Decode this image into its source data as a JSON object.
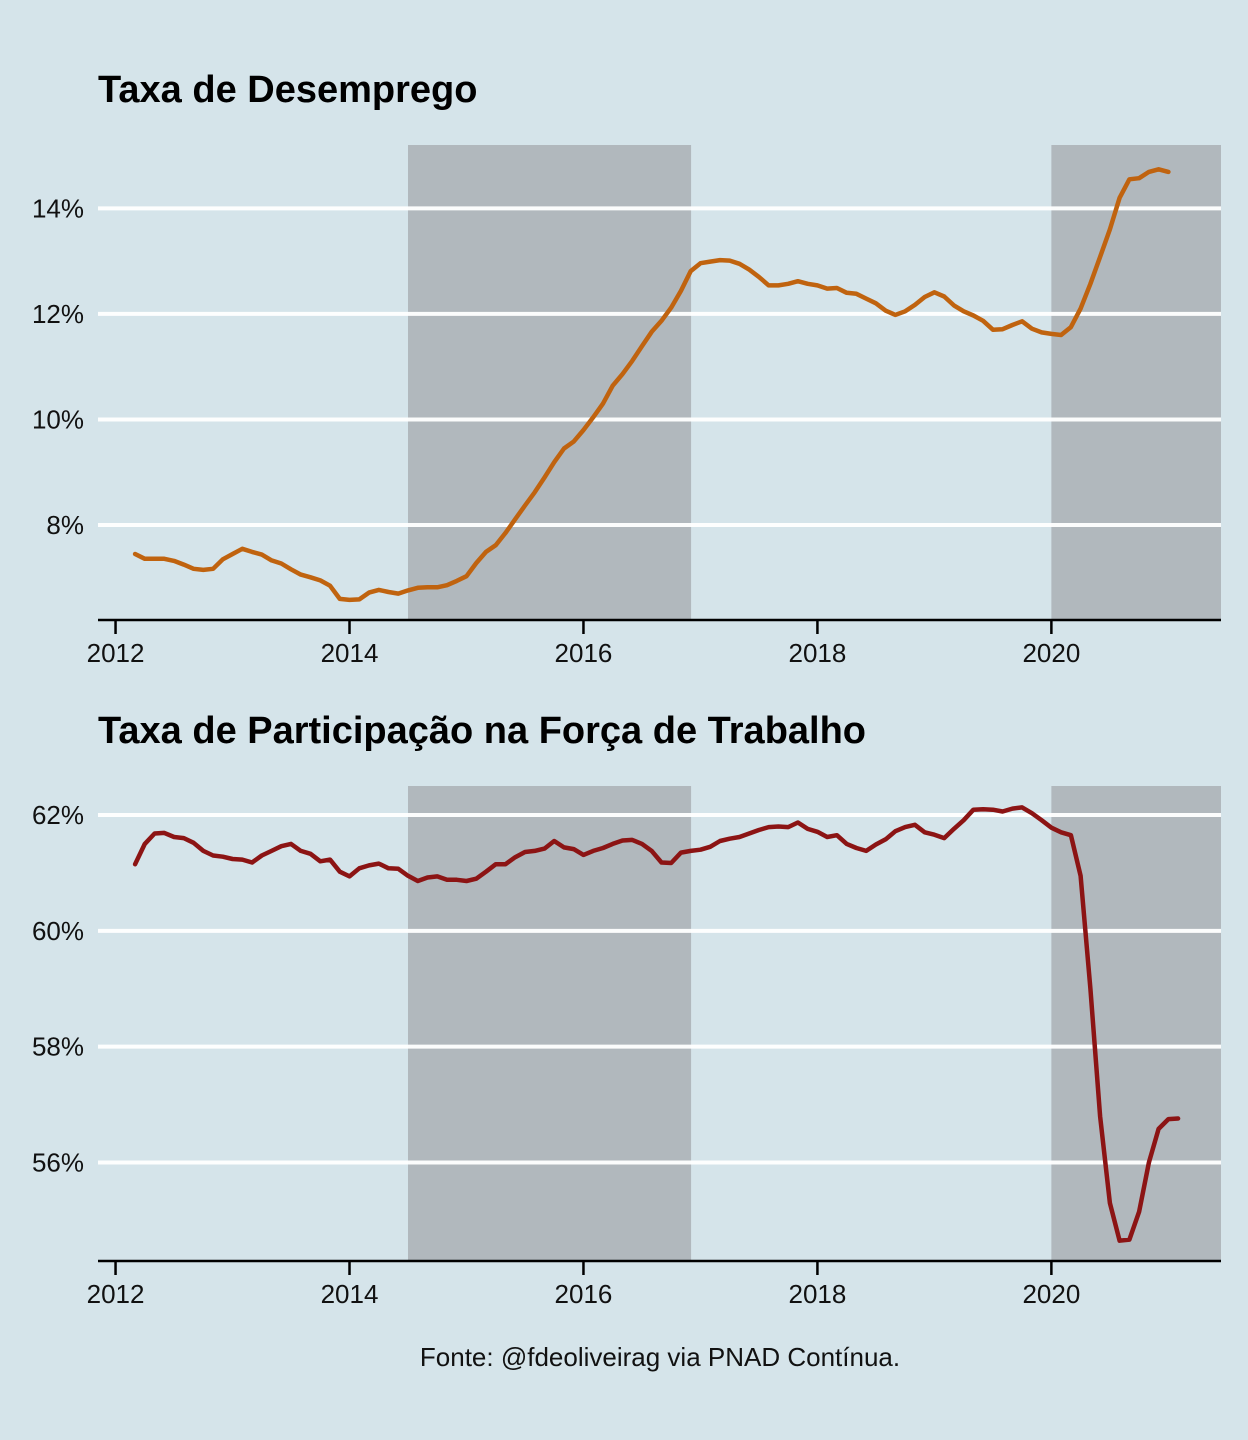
{
  "source_note": "Fonte: @fdeoliveirag via PNAD Contínua.",
  "colors": {
    "background": "#d5e4ea",
    "shade": "#b1b8bd",
    "grid": "#ffffff",
    "unemployment": "#c0630f",
    "participation": "#8c1414"
  },
  "chart_data": [
    {
      "type": "line",
      "title": "Taxa de Desemprego",
      "xlabel": "",
      "ylabel": "",
      "xlim": [
        2011.85,
        2021.45
      ],
      "ylim": [
        6.2,
        15.2
      ],
      "x_ticks": [
        2012,
        2014,
        2016,
        2018,
        2020
      ],
      "x_tick_labels": [
        "2012",
        "2014",
        "2016",
        "2018",
        "2020"
      ],
      "y_ticks": [
        8,
        10,
        12,
        14
      ],
      "y_tick_labels": [
        "8%",
        "10%",
        "12%",
        "14%"
      ],
      "grid": "horizontal",
      "shaded_periods": [
        [
          2014.5,
          2016.92
        ],
        [
          2020.0,
          2021.45
        ]
      ],
      "series": [
        {
          "color": "#c0630f",
          "x_start": 2012.167,
          "x_step": 0.08333,
          "values": [
            7.45,
            7.36,
            7.36,
            7.36,
            7.32,
            7.25,
            7.17,
            7.15,
            7.17,
            7.35,
            7.45,
            7.55,
            7.49,
            7.44,
            7.33,
            7.27,
            7.16,
            7.06,
            7.01,
            6.95,
            6.85,
            6.6,
            6.58,
            6.59,
            6.72,
            6.77,
            6.73,
            6.7,
            6.76,
            6.81,
            6.82,
            6.82,
            6.86,
            6.94,
            7.03,
            7.28,
            7.49,
            7.62,
            7.85,
            8.11,
            8.37,
            8.62,
            8.9,
            9.19,
            9.45,
            9.58,
            9.8,
            10.04,
            10.3,
            10.64,
            10.86,
            11.11,
            11.39,
            11.66,
            11.87,
            12.12,
            12.44,
            12.81,
            12.96,
            12.99,
            13.02,
            13.01,
            12.95,
            12.84,
            12.7,
            12.54,
            12.54,
            12.57,
            12.62,
            12.57,
            12.54,
            12.48,
            12.49,
            12.4,
            12.38,
            12.29,
            12.2,
            12.06,
            11.98,
            12.05,
            12.17,
            12.32,
            12.41,
            12.33,
            12.16,
            12.05,
            11.97,
            11.87,
            11.7,
            11.71,
            11.79,
            11.86,
            11.72,
            11.65,
            11.62,
            11.6,
            11.75,
            12.1,
            12.57,
            13.08,
            13.6,
            14.2,
            14.55,
            14.57,
            14.69,
            14.74,
            14.69
          ]
        }
      ]
    },
    {
      "type": "line",
      "title": "Taxa de Participação na Força de Trabalho",
      "xlabel": "",
      "ylabel": "",
      "xlim": [
        2011.85,
        2021.45
      ],
      "ylim": [
        54.3,
        62.5
      ],
      "x_ticks": [
        2012,
        2014,
        2016,
        2018,
        2020
      ],
      "x_tick_labels": [
        "2012",
        "2014",
        "2016",
        "2018",
        "2020"
      ],
      "y_ticks": [
        56,
        58,
        60,
        62
      ],
      "y_tick_labels": [
        "56%",
        "58%",
        "60%",
        "62%"
      ],
      "grid": "horizontal",
      "shaded_periods": [
        [
          2014.5,
          2016.92
        ],
        [
          2020.0,
          2021.45
        ]
      ],
      "series": [
        {
          "color": "#8c1414",
          "x_start": 2012.167,
          "x_step": 0.08333,
          "values": [
            61.15,
            61.5,
            61.68,
            61.69,
            61.62,
            61.6,
            61.52,
            61.38,
            61.3,
            61.28,
            61.24,
            61.23,
            61.18,
            61.3,
            61.38,
            61.46,
            61.5,
            61.38,
            61.33,
            61.2,
            61.23,
            61.02,
            60.94,
            61.08,
            61.13,
            61.16,
            61.08,
            61.07,
            60.95,
            60.86,
            60.92,
            60.94,
            60.88,
            60.88,
            60.86,
            60.9,
            61.02,
            61.15,
            61.15,
            61.27,
            61.36,
            61.38,
            61.42,
            61.55,
            61.44,
            61.41,
            61.31,
            61.38,
            61.43,
            61.5,
            61.56,
            61.57,
            61.5,
            61.38,
            61.18,
            61.17,
            61.35,
            61.38,
            61.4,
            61.45,
            61.55,
            61.59,
            61.62,
            61.68,
            61.74,
            61.79,
            61.8,
            61.79,
            61.87,
            61.76,
            61.71,
            61.62,
            61.65,
            61.5,
            61.43,
            61.38,
            61.49,
            61.58,
            61.72,
            61.79,
            61.83,
            61.7,
            61.66,
            61.6,
            61.76,
            61.91,
            62.09,
            62.1,
            62.09,
            62.06,
            62.11,
            62.13,
            62.03,
            61.91,
            61.78,
            61.7,
            61.65,
            60.95,
            59.0,
            56.8,
            55.3,
            54.65,
            54.67,
            55.15,
            56.0,
            56.58,
            56.75,
            56.76
          ]
        }
      ]
    }
  ]
}
